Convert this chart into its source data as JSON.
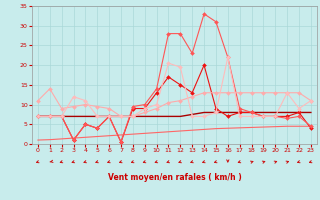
{
  "x": [
    0,
    1,
    2,
    3,
    4,
    5,
    6,
    7,
    8,
    9,
    10,
    11,
    12,
    13,
    14,
    15,
    16,
    17,
    18,
    19,
    20,
    21,
    22,
    23
  ],
  "series": [
    {
      "color": "#ee1111",
      "lw": 0.8,
      "marker": "D",
      "ms": 2.0,
      "values": [
        7,
        7,
        7,
        1,
        5,
        4,
        7,
        0.5,
        9,
        9,
        13,
        17,
        15,
        13,
        20,
        9,
        7,
        8,
        8,
        7,
        7,
        7,
        8,
        4
      ]
    },
    {
      "color": "#ff5555",
      "lw": 0.8,
      "marker": "D",
      "ms": 2.0,
      "values": [
        7,
        7,
        7,
        1,
        5,
        4,
        7,
        0.5,
        9.5,
        10,
        14,
        28,
        28,
        23,
        33,
        31,
        22,
        9,
        8,
        7,
        7,
        6.5,
        7,
        4.5
      ]
    },
    {
      "color": "#ffaaaa",
      "lw": 0.8,
      "marker": "D",
      "ms": 2.0,
      "values": [
        11,
        14,
        9,
        9.5,
        10,
        9.5,
        9,
        7,
        7,
        8,
        9,
        10.5,
        11,
        12,
        13,
        13,
        13,
        13,
        13,
        13,
        13,
        13,
        13,
        11
      ]
    },
    {
      "color": "#ffbbbb",
      "lw": 0.8,
      "marker": "D",
      "ms": 2.0,
      "values": [
        7,
        7,
        7,
        12,
        11,
        7,
        7,
        7,
        7,
        9,
        10,
        20.5,
        19.5,
        7,
        7,
        8,
        22,
        7,
        7,
        7,
        7,
        13,
        9,
        11
      ]
    },
    {
      "color": "#aa0000",
      "lw": 1.0,
      "marker": null,
      "ms": 0,
      "values": [
        7,
        7,
        7,
        7,
        7,
        7,
        7,
        7,
        7,
        7,
        7,
        7,
        7,
        7.5,
        8,
        8,
        8,
        8,
        8,
        8,
        8,
        8,
        8,
        8
      ]
    },
    {
      "color": "#ff6666",
      "lw": 0.8,
      "marker": null,
      "ms": 0,
      "values": [
        1.0,
        1.1,
        1.3,
        1.5,
        1.7,
        1.9,
        2.1,
        2.3,
        2.5,
        2.7,
        2.9,
        3.1,
        3.3,
        3.5,
        3.7,
        3.9,
        4.0,
        4.1,
        4.2,
        4.3,
        4.4,
        4.5,
        4.5,
        4.5
      ]
    }
  ],
  "arrow_angles_deg": [
    225,
    210,
    225,
    225,
    225,
    225,
    225,
    225,
    225,
    225,
    225,
    225,
    225,
    225,
    225,
    225,
    270,
    225,
    45,
    45,
    45,
    45,
    225,
    225
  ],
  "xlabel": "Vent moyen/en rafales ( km/h )",
  "xlim": [
    -0.5,
    23.5
  ],
  "ylim": [
    0,
    35
  ],
  "yticks": [
    0,
    5,
    10,
    15,
    20,
    25,
    30,
    35
  ],
  "xticks": [
    0,
    1,
    2,
    3,
    4,
    5,
    6,
    7,
    8,
    9,
    10,
    11,
    12,
    13,
    14,
    15,
    16,
    17,
    18,
    19,
    20,
    21,
    22,
    23
  ],
  "bg_color": "#c8ecec",
  "grid_color": "#aad8d8",
  "tick_color": "#cc0000",
  "label_color": "#cc0000",
  "arrow_color": "#cc1111",
  "spine_color": "#999999"
}
